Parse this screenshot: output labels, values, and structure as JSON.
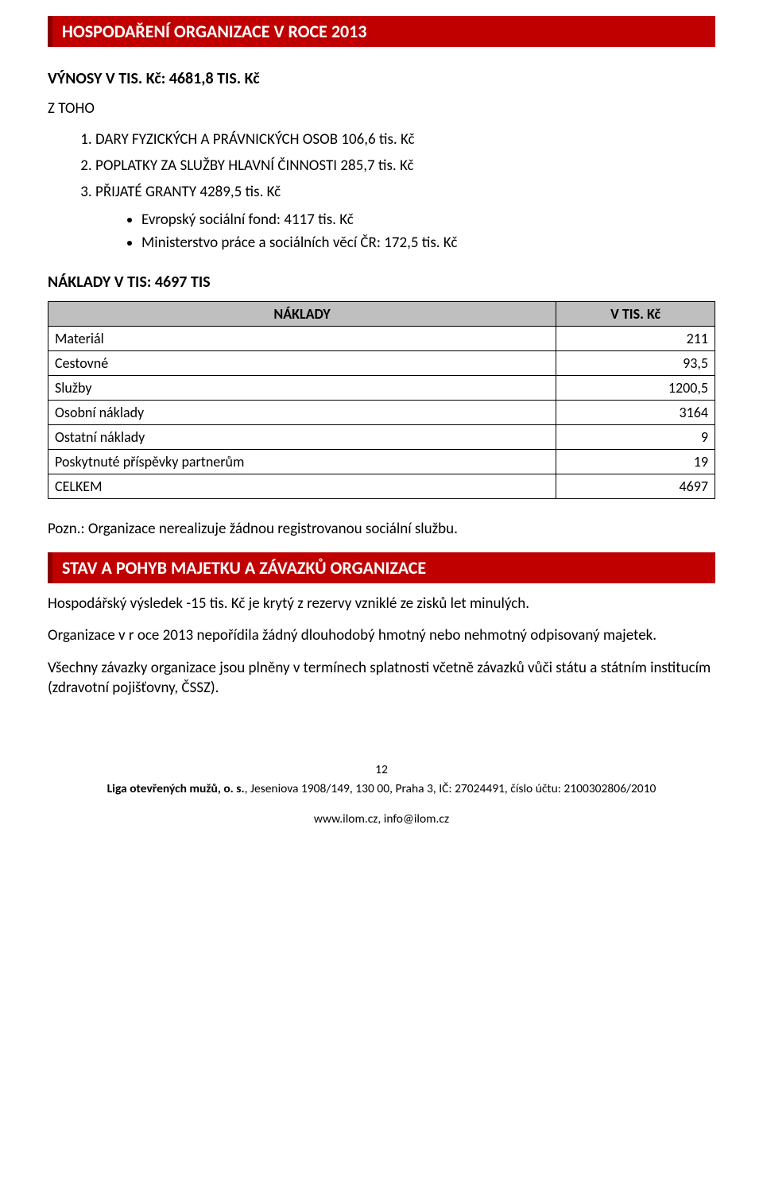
{
  "header1": "HOSPODAŘENÍ ORGANIZACE V ROCE 2013",
  "vynosy_title": "VÝNOSY V TIS. Kč:  4681,8 TIS. Kč",
  "z_toho": "Z TOHO",
  "list_items": [
    "DARY FYZICKÝCH A PRÁVNICKÝCH OSOB  106,6 tis. Kč",
    "POPLATKY ZA SLUŽBY HLAVNÍ ČINNOSTI  285,7 tis. Kč",
    "PŘIJATÉ GRANTY 4289,5 tis. Kč"
  ],
  "sub_items": [
    "Evropský sociální fond: 4117 tis. Kč",
    "Ministerstvo práce a sociálních věcí ČR:  172,5 tis. Kč"
  ],
  "naklady_title": "NÁKLADY V TIS: 4697 TIS",
  "table": {
    "col1": "NÁKLADY",
    "col2": "V TIS. Kč",
    "rows": [
      {
        "label": "Materiál",
        "val": "211"
      },
      {
        "label": "Cestovné",
        "val": "93,5"
      },
      {
        "label": "Služby",
        "val": "1200,5"
      },
      {
        "label": "Osobní náklady",
        "val": "3164"
      },
      {
        "label": "Ostatní náklady",
        "val": "9"
      },
      {
        "label": "Poskytnuté příspěvky partnerům",
        "val": "19"
      },
      {
        "label": "CELKEM",
        "val": "4697"
      }
    ],
    "header_bg": "#bfbfbf",
    "border_color": "#000000"
  },
  "pozn": "Pozn.: Organizace nerealizuje žádnou registrovanou sociální službu.",
  "header2": "STAV A POHYB MAJETKU A ZÁVAZKŮ ORGANIZACE",
  "p1": "Hospodářský výsledek -15 tis. Kč je krytý z rezervy vzniklé ze zisků let minulých.",
  "p2": "Organizace v r oce 2013 nepořídila žádný dlouhodobý hmotný nebo nehmotný odpisovaný majetek.",
  "p3": "Všechny závazky organizace jsou plněny v termínech splatnosti včetně závazků vůči státu a státním institucím (zdravotní pojišťovny, ČSSZ).",
  "footer": {
    "page": "12",
    "org": "Liga otevřených mužů, o. s.",
    "rest": ", Jeseniova 1908/149, 130 00, Praha 3, IČ: 27024491, číslo účtu: 2100302806/2010",
    "url": "www.ilom.cz, info@ilom.cz"
  },
  "colors": {
    "red_header_bg": "#c00000",
    "red_header_border": "#8a0000",
    "text": "#000000",
    "bg": "#ffffff"
  }
}
